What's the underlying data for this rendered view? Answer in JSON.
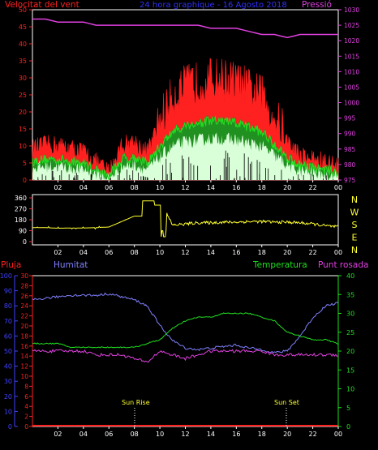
{
  "colors": {
    "red": "#ff2020",
    "green": "#20e020",
    "palegreen": "#d8ffd8",
    "white": "#ffffff",
    "magenta": "#e040e0",
    "blue": "#4040ff",
    "lightblue": "#8080ff",
    "yellow": "#ffff30"
  },
  "panel1": {
    "title": "24 hora graphique - 16 Agosto 2018",
    "left_label": "Velocitat del vent",
    "right_label": "Pressió",
    "left_ticks": [
      "0",
      "5",
      "10",
      "15",
      "20",
      "25",
      "30",
      "35",
      "40",
      "45",
      "50"
    ],
    "right_ticks": [
      "975",
      "980",
      "985",
      "990",
      "995",
      "1000",
      "1005",
      "1010",
      "1015",
      "1020",
      "1025",
      "1030"
    ],
    "x_ticks": [
      "02",
      "04",
      "06",
      "08",
      "10",
      "12",
      "14",
      "16",
      "18",
      "20",
      "22",
      "00"
    ]
  },
  "panel2": {
    "left_ticks": [
      "0",
      "90",
      "180",
      "270",
      "360"
    ],
    "compass": [
      "N",
      "W",
      "S",
      "E",
      "N"
    ],
    "x_ticks": [
      "02",
      "04",
      "06",
      "08",
      "10",
      "12",
      "14",
      "16",
      "18",
      "20",
      "22",
      "00"
    ]
  },
  "panel3": {
    "labels": {
      "rain": "Pluja",
      "humidity": "Humitat",
      "temperature": "Temperatura",
      "dewpoint": "Punt rosada"
    },
    "rain_ticks": [
      "0",
      "2",
      "4",
      "6",
      "8",
      "10",
      "12",
      "14",
      "16",
      "18",
      "20",
      "22",
      "24",
      "26",
      "28",
      "30"
    ],
    "hum_ticks": [
      "0",
      "10",
      "20",
      "30",
      "40",
      "50",
      "60",
      "70",
      "80",
      "90",
      "100"
    ],
    "temp_ticks": [
      "0",
      "5",
      "10",
      "15",
      "20",
      "25",
      "30",
      "35",
      "40"
    ],
    "x_ticks": [
      "02",
      "04",
      "06",
      "08",
      "10",
      "12",
      "14",
      "16",
      "18",
      "20",
      "22",
      "00"
    ],
    "sun_rise": "Sun Rise",
    "sun_set": "Sun Set"
  },
  "chart_data": [
    {
      "type": "line",
      "title": "24 hora graphique - 16 Agosto 2018",
      "x": [
        0,
        1,
        2,
        3,
        4,
        5,
        6,
        7,
        8,
        9,
        10,
        11,
        12,
        13,
        14,
        15,
        16,
        17,
        18,
        19,
        20,
        21,
        22,
        23,
        24
      ],
      "ylim": [
        0,
        50
      ],
      "y2lim": [
        975,
        1030
      ],
      "series": [
        {
          "name": "Velocitat del vent",
          "values": [
            8,
            9,
            9,
            8,
            7,
            4,
            1,
            9,
            10,
            7,
            15,
            22,
            25,
            26,
            27,
            27,
            26,
            24,
            22,
            16,
            10,
            6,
            5,
            4,
            3
          ]
        },
        {
          "name": "Pressió",
          "values": [
            1027,
            1027,
            1026,
            1026,
            1026,
            1025,
            1025,
            1025,
            1025,
            1025,
            1025,
            1025,
            1025,
            1025,
            1024,
            1024,
            1024,
            1023,
            1022,
            1022,
            1021,
            1022,
            1022,
            1022,
            1022
          ]
        }
      ]
    },
    {
      "type": "line",
      "x": [
        0,
        1,
        2,
        3,
        4,
        5,
        6,
        7,
        8,
        9,
        10,
        11,
        12,
        13,
        14,
        15,
        16,
        17,
        18,
        19,
        20,
        21,
        22,
        23,
        24
      ],
      "ylim": [
        0,
        360
      ],
      "series": [
        {
          "values": [
            115,
            115,
            110,
            112,
            112,
            115,
            120,
            165,
            210,
            290,
            335,
            135,
            145,
            155,
            155,
            160,
            160,
            165,
            165,
            160,
            160,
            155,
            145,
            130,
            120
          ]
        }
      ]
    },
    {
      "type": "line",
      "x": [
        0,
        1,
        2,
        3,
        4,
        5,
        6,
        7,
        8,
        9,
        10,
        11,
        12,
        13,
        14,
        15,
        16,
        17,
        18,
        19,
        20,
        21,
        22,
        23,
        24
      ],
      "series": [
        {
          "name": "Humitat",
          "ylim": [
            0,
            100
          ],
          "values": [
            84,
            85,
            86,
            87,
            87,
            87,
            88,
            86,
            84,
            80,
            67,
            57,
            52,
            51,
            52,
            53,
            54,
            52,
            51,
            49,
            50,
            60,
            72,
            80,
            82
          ]
        },
        {
          "name": "Temperatura",
          "ylim": [
            0,
            40
          ],
          "values": [
            22,
            22,
            22,
            21,
            21,
            21,
            21,
            21,
            21,
            22,
            23,
            26,
            28,
            29,
            29,
            30,
            30,
            30,
            29,
            28,
            25,
            24,
            23,
            23,
            22
          ]
        },
        {
          "name": "Punt rosada",
          "ylim": [
            0,
            40
          ],
          "values": [
            20,
            20,
            20,
            20,
            20,
            19,
            19,
            19,
            18,
            17,
            20,
            19,
            18,
            19,
            20,
            20,
            20,
            20,
            20,
            19,
            19,
            19,
            19,
            19,
            19
          ]
        },
        {
          "name": "Pluja",
          "ylim": [
            0,
            30
          ],
          "values": [
            0,
            0,
            0,
            0,
            0,
            0,
            0,
            0,
            0,
            0,
            0,
            0,
            0,
            0,
            0,
            0,
            0,
            0,
            0,
            0,
            0,
            0,
            0,
            0,
            0
          ]
        }
      ],
      "annotations": [
        {
          "label": "Sun Rise",
          "x": 8
        },
        {
          "label": "Sun Set",
          "x": 20
        }
      ]
    }
  ]
}
